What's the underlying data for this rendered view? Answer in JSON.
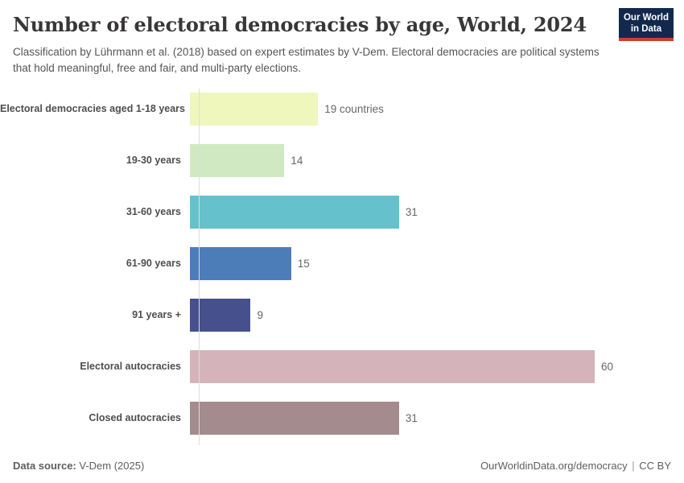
{
  "header": {
    "title": "Number of electoral democracies by age, World, 2024",
    "subtitle": "Classification by Lührmann et al. (2018) based on expert estimates by V-Dem. Electoral democracies are political systems that hold meaningful, free and fair, and multi-party elections.",
    "logo": {
      "line1": "Our World",
      "line2": "in Data",
      "bg_color": "#12294d",
      "accent_color": "#d13b32"
    }
  },
  "chart_data": {
    "type": "bar",
    "orientation": "horizontal",
    "title": "Number of electoral democracies by age, World, 2024",
    "categories": [
      "Electoral democracies aged 1-18 years",
      "19-30 years",
      "31-60 years",
      "61-90 years",
      "91 years +",
      "Electoral autocracies",
      "Closed autocracies"
    ],
    "values": [
      19,
      14,
      31,
      15,
      9,
      60,
      31
    ],
    "value_labels": [
      "19 countries",
      "14",
      "31",
      "15",
      "9",
      "60",
      "31"
    ],
    "bar_colors": [
      "#eff7bd",
      "#d0e9c2",
      "#65c2cc",
      "#4c7db8",
      "#45508c",
      "#d4b4ba",
      "#a48b8e"
    ],
    "xlabel": "",
    "ylabel": "",
    "xlim": [
      0,
      60
    ],
    "grid": false,
    "legend": false,
    "axis_line_color": "#dddddd"
  },
  "footer": {
    "data_source_label": "Data source:",
    "data_source_value": " V-Dem (2025)",
    "url": "OurWorldinData.org/democracy",
    "separator": "|",
    "license": "CC BY"
  }
}
